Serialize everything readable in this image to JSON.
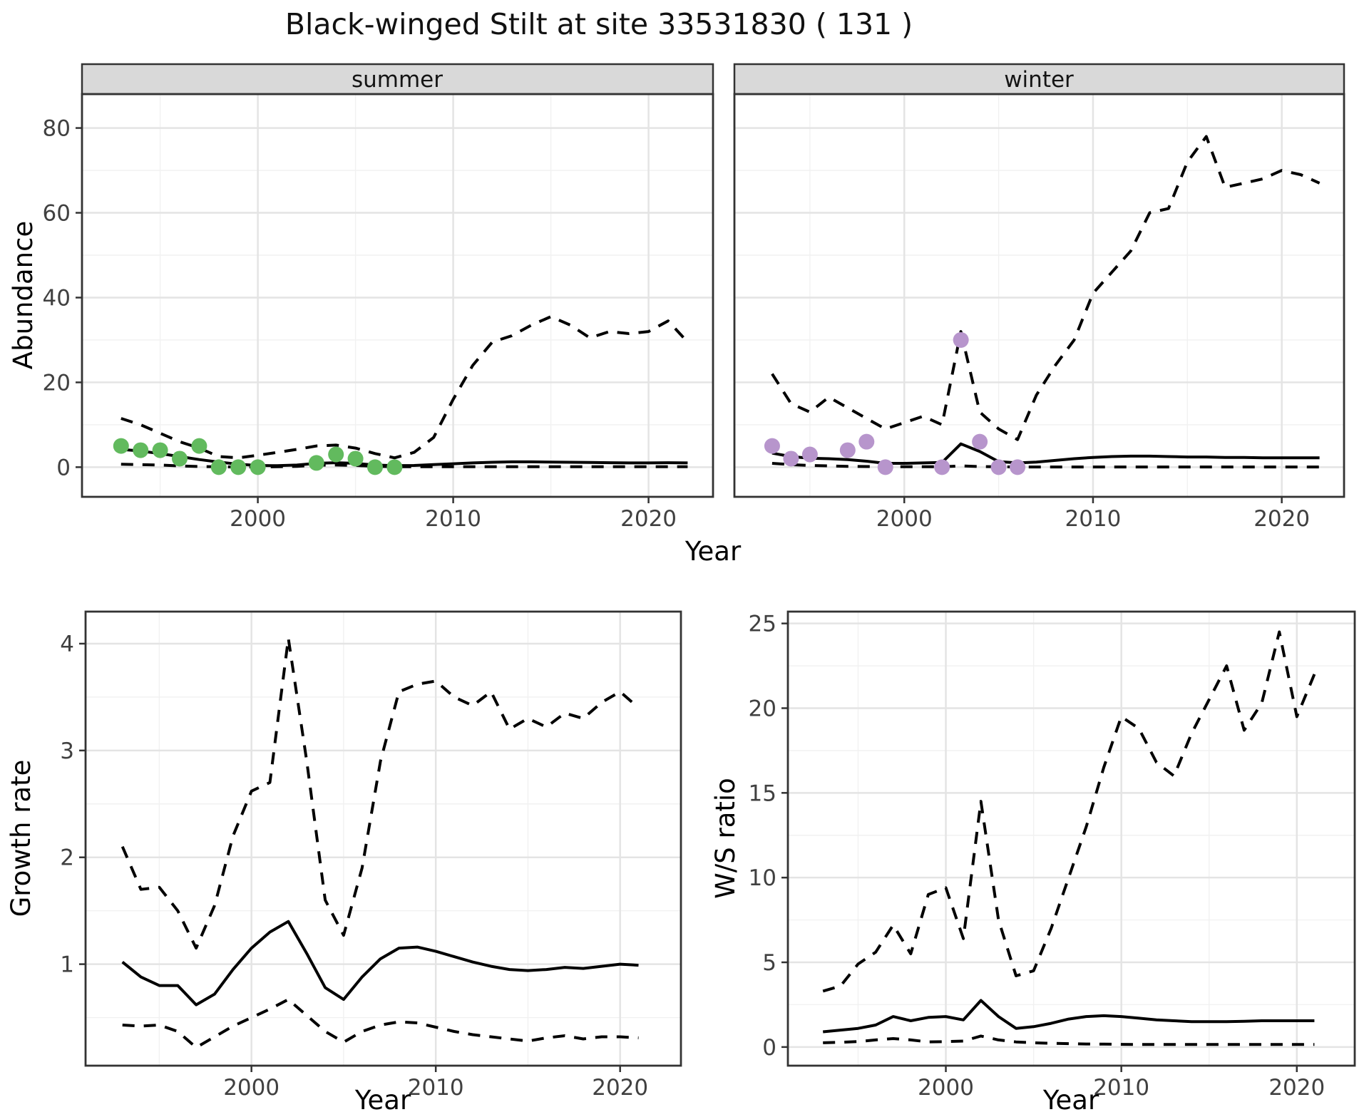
{
  "title": "Black-winged Stilt at site 33531830 ( 131 )",
  "axes": {
    "abundance_label": "Abundance",
    "growth_label": "Growth rate",
    "ws_label": "W/S ratio",
    "year_label_top": "Year",
    "year_label_bottom_left": "Year",
    "year_label_bottom_right": "Year"
  },
  "facets": {
    "summer": "summer",
    "winter": "winter"
  },
  "colors": {
    "summer_point": "#62BA5E",
    "winter_point": "#B795CC",
    "line": "#000000",
    "strip_bg": "#D9D9D9",
    "strip_border": "#333333",
    "panel_border": "#333333",
    "grid_major": "#E4E4E4",
    "grid_minor": "#F1F1F1",
    "tick_text": "#404040",
    "tick_mark": "#333333",
    "panel_bg": "#FFFFFF"
  },
  "chart_data": [
    {
      "id": "summer-abundance",
      "type": "line",
      "facet": "summer",
      "title": "",
      "xlabel": "Year",
      "ylabel": "Abundance",
      "x": [
        1993,
        1994,
        1995,
        1996,
        1997,
        1998,
        1999,
        2000,
        2001,
        2002,
        2003,
        2004,
        2005,
        2006,
        2007,
        2008,
        2009,
        2010,
        2011,
        2012,
        2013,
        2014,
        2015,
        2016,
        2017,
        2018,
        2019,
        2020,
        2021,
        2022
      ],
      "series": [
        {
          "name": "estimate",
          "style": "solid",
          "values": [
            4.2,
            3.8,
            3.2,
            2.5,
            1.8,
            1.2,
            0.7,
            0.4,
            0.35,
            0.5,
            0.9,
            1.05,
            0.9,
            0.5,
            0.35,
            0.4,
            0.6,
            0.8,
            1.0,
            1.15,
            1.25,
            1.25,
            1.2,
            1.15,
            1.1,
            1.05,
            1.0,
            1.0,
            1.05,
            1.0
          ]
        },
        {
          "name": "upper_95_ci",
          "style": "dashed",
          "values": [
            11.5,
            10,
            8,
            6,
            4.5,
            2.5,
            2.2,
            2.8,
            3.5,
            4.2,
            5.0,
            5.2,
            4.5,
            3.2,
            2.2,
            3.5,
            7,
            16,
            24,
            29.5,
            31,
            33.5,
            35.5,
            33.5,
            30.5,
            32,
            31.5,
            32,
            34.5,
            29.5
          ]
        },
        {
          "name": "lower_95_ci",
          "style": "dashed",
          "values": [
            0.7,
            0.6,
            0.5,
            0.3,
            0.15,
            0.1,
            0.05,
            0.05,
            0.1,
            0.2,
            0.45,
            0.5,
            0.4,
            0.2,
            0.1,
            0.1,
            0.1,
            0.1,
            0.1,
            0.1,
            0.1,
            0.1,
            0.1,
            0.1,
            0.1,
            0.1,
            0.1,
            0.1,
            0.1,
            0.1
          ]
        }
      ],
      "points": {
        "color_key": "summer_point",
        "data": [
          [
            1993,
            5
          ],
          [
            1994,
            4
          ],
          [
            1995,
            4
          ],
          [
            1996,
            2
          ],
          [
            1997,
            5
          ],
          [
            1998,
            0
          ],
          [
            1999,
            0
          ],
          [
            2000,
            0
          ],
          [
            2003,
            1
          ],
          [
            2004,
            3
          ],
          [
            2005,
            2
          ],
          [
            2006,
            0
          ],
          [
            2007,
            0
          ]
        ]
      },
      "xticks": [
        2000,
        2010,
        2020
      ],
      "yticks": [
        0,
        20,
        40,
        60,
        80
      ],
      "minor_x": [
        1995,
        2005,
        2015
      ],
      "minor_y": [
        10,
        30,
        50,
        70
      ],
      "xlim": [
        1991,
        2023.3
      ],
      "ylim": [
        -7,
        88
      ],
      "grid": true,
      "legend": "none"
    },
    {
      "id": "winter-abundance",
      "type": "line",
      "facet": "winter",
      "title": "",
      "xlabel": "Year",
      "ylabel": "Abundance",
      "x": [
        1993,
        1994,
        1995,
        1996,
        1997,
        1998,
        1999,
        2000,
        2001,
        2002,
        2003,
        2004,
        2005,
        2006,
        2007,
        2008,
        2009,
        2010,
        2011,
        2012,
        2013,
        2014,
        2015,
        2016,
        2017,
        2018,
        2019,
        2020,
        2021,
        2022
      ],
      "series": [
        {
          "name": "estimate",
          "style": "solid",
          "values": [
            3.3,
            2.5,
            2.1,
            2.0,
            1.8,
            1.4,
            0.9,
            0.9,
            1.0,
            1.1,
            5.5,
            3.7,
            1.3,
            1.0,
            1.2,
            1.6,
            2.0,
            2.3,
            2.5,
            2.6,
            2.6,
            2.5,
            2.4,
            2.4,
            2.3,
            2.3,
            2.2,
            2.2,
            2.2,
            2.2
          ]
        },
        {
          "name": "upper_95_ci",
          "style": "dashed",
          "values": [
            22,
            15,
            13,
            16.5,
            14,
            11.5,
            9,
            10.5,
            12,
            10,
            32,
            13,
            9,
            6.5,
            17,
            24,
            30,
            41,
            46,
            51,
            60,
            61,
            72,
            78,
            66,
            67,
            68,
            70,
            69,
            67
          ]
        },
        {
          "name": "lower_95_ci",
          "style": "dashed",
          "values": [
            0.9,
            0.6,
            0.4,
            0.3,
            0.2,
            0.15,
            0.1,
            0.1,
            0.1,
            0.1,
            0.3,
            0.15,
            0.1,
            0.05,
            0.05,
            0.05,
            0.05,
            0.05,
            0.05,
            0.05,
            0.05,
            0.05,
            0.05,
            0.05,
            0.05,
            0.05,
            0.05,
            0.05,
            0.05,
            0.05
          ]
        }
      ],
      "points": {
        "color_key": "winter_point",
        "data": [
          [
            1993,
            5
          ],
          [
            1994,
            2
          ],
          [
            1995,
            3
          ],
          [
            1997,
            4
          ],
          [
            1998,
            6
          ],
          [
            1999,
            0
          ],
          [
            2002,
            0
          ],
          [
            2003,
            30
          ],
          [
            2004,
            6
          ],
          [
            2005,
            0
          ],
          [
            2006,
            0
          ]
        ]
      },
      "xticks": [
        2000,
        2010,
        2020
      ],
      "yticks": [],
      "minor_x": [
        1995,
        2005,
        2015
      ],
      "minor_y": [
        10,
        30,
        50,
        70
      ],
      "xlim": [
        1991,
        2023.3
      ],
      "ylim": [
        -7,
        88
      ],
      "grid": true,
      "legend": "none"
    },
    {
      "id": "growth-rate",
      "type": "line",
      "facet": "",
      "title": "",
      "xlabel": "Year",
      "ylabel": "Growth rate",
      "x": [
        1993,
        1994,
        1995,
        1996,
        1997,
        1998,
        1999,
        2000,
        2001,
        2002,
        2003,
        2004,
        2005,
        2006,
        2007,
        2008,
        2009,
        2010,
        2011,
        2012,
        2013,
        2014,
        2015,
        2016,
        2017,
        2018,
        2019,
        2020,
        2021
      ],
      "series": [
        {
          "name": "estimate",
          "style": "solid",
          "values": [
            1.02,
            0.88,
            0.8,
            0.8,
            0.62,
            0.72,
            0.95,
            1.15,
            1.3,
            1.4,
            1.1,
            0.78,
            0.67,
            0.88,
            1.05,
            1.15,
            1.16,
            1.12,
            1.07,
            1.02,
            0.98,
            0.95,
            0.94,
            0.95,
            0.97,
            0.96,
            0.98,
            1.0,
            0.99
          ]
        },
        {
          "name": "upper_95_ci",
          "style": "dashed",
          "values": [
            2.1,
            1.7,
            1.72,
            1.5,
            1.15,
            1.55,
            2.2,
            2.62,
            2.7,
            4.05,
            2.9,
            1.6,
            1.27,
            1.9,
            2.9,
            3.55,
            3.62,
            3.65,
            3.5,
            3.42,
            3.55,
            3.2,
            3.3,
            3.22,
            3.35,
            3.3,
            3.45,
            3.55,
            3.4
          ]
        },
        {
          "name": "lower_95_ci",
          "style": "dashed",
          "values": [
            0.43,
            0.42,
            0.43,
            0.37,
            0.22,
            0.32,
            0.42,
            0.5,
            0.58,
            0.67,
            0.52,
            0.37,
            0.27,
            0.37,
            0.43,
            0.46,
            0.45,
            0.41,
            0.37,
            0.34,
            0.32,
            0.3,
            0.28,
            0.31,
            0.33,
            0.3,
            0.32,
            0.32,
            0.31
          ]
        }
      ],
      "points": {
        "color_key": "",
        "data": []
      },
      "xticks": [
        2000,
        2010,
        2020
      ],
      "yticks": [
        1,
        2,
        3,
        4
      ],
      "minor_x": [
        1995,
        2005,
        2015
      ],
      "minor_y": [
        0.5,
        1.5,
        2.5,
        3.5
      ],
      "xlim": [
        1991,
        2023.3
      ],
      "ylim": [
        0.05,
        4.3
      ],
      "grid": true,
      "legend": "none"
    },
    {
      "id": "ws-ratio",
      "type": "line",
      "facet": "",
      "title": "",
      "xlabel": "Year",
      "ylabel": "W/S ratio",
      "x": [
        1993,
        1994,
        1995,
        1996,
        1997,
        1998,
        1999,
        2000,
        2001,
        2002,
        2003,
        2004,
        2005,
        2006,
        2007,
        2008,
        2009,
        2010,
        2011,
        2012,
        2013,
        2014,
        2015,
        2016,
        2017,
        2018,
        2019,
        2020,
        2021
      ],
      "series": [
        {
          "name": "estimate",
          "style": "solid",
          "values": [
            0.9,
            1.0,
            1.1,
            1.3,
            1.8,
            1.55,
            1.75,
            1.8,
            1.6,
            2.75,
            1.8,
            1.1,
            1.2,
            1.4,
            1.65,
            1.8,
            1.85,
            1.8,
            1.7,
            1.6,
            1.55,
            1.5,
            1.5,
            1.5,
            1.52,
            1.55,
            1.55,
            1.55,
            1.55
          ]
        },
        {
          "name": "upper_95_ci",
          "style": "dashed",
          "values": [
            3.3,
            3.6,
            4.9,
            5.6,
            7.2,
            5.5,
            9.0,
            9.4,
            6.4,
            14.5,
            7.5,
            4.2,
            4.5,
            7.0,
            10.0,
            13.0,
            16.5,
            19.5,
            18.8,
            16.8,
            16.0,
            18.5,
            20.5,
            22.5,
            18.7,
            20.3,
            24.5,
            19.5,
            22.0
          ]
        },
        {
          "name": "lower_95_ci",
          "style": "dashed",
          "values": [
            0.25,
            0.28,
            0.32,
            0.42,
            0.5,
            0.42,
            0.3,
            0.32,
            0.35,
            0.65,
            0.42,
            0.3,
            0.25,
            0.22,
            0.2,
            0.18,
            0.17,
            0.16,
            0.15,
            0.15,
            0.15,
            0.15,
            0.15,
            0.15,
            0.15,
            0.15,
            0.15,
            0.15,
            0.15
          ]
        }
      ],
      "points": {
        "color_key": "",
        "data": []
      },
      "xticks": [
        2000,
        2010,
        2020
      ],
      "yticks": [
        0,
        5,
        10,
        15,
        20,
        25
      ],
      "minor_x": [
        1995,
        2005,
        2015
      ],
      "minor_y": [
        2.5,
        7.5,
        12.5,
        17.5,
        22.5
      ],
      "xlim": [
        1991,
        2023.3
      ],
      "ylim": [
        -1.1,
        25.7
      ],
      "grid": true,
      "legend": "none"
    }
  ]
}
